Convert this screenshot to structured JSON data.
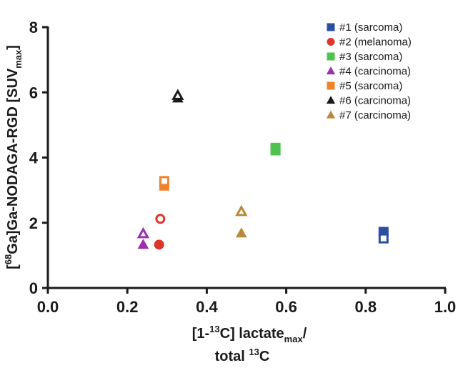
{
  "chart_data": {
    "type": "scatter",
    "ylabel": {
      "prefix": "[",
      "sup1": "68",
      "mid": "Ga]Ga-NODAGA-RGD [SUV",
      "sub": "max",
      "suffix": "]"
    },
    "xlabel": {
      "line1": {
        "prefix": "[1-",
        "sup": "13",
        "mid": "C] lactate",
        "sub": "max",
        "suffix": "/"
      },
      "line2": {
        "prefix": "total ",
        "sup": "13",
        "suffix": "C"
      }
    },
    "xlim": [
      0,
      1.0
    ],
    "ylim": [
      0,
      8
    ],
    "x_ticks": [
      "0.0",
      "0.2",
      "0.4",
      "0.6",
      "0.8",
      "1.0"
    ],
    "y_ticks": [
      "0",
      "2",
      "4",
      "6",
      "8"
    ],
    "legend_position": "top-right",
    "series": [
      {
        "name": "#1 (sarcoma)",
        "color": "#2b4ea2",
        "marker": "square",
        "points": [
          {
            "x": 0.845,
            "y": 1.72,
            "filled": true
          },
          {
            "x": 0.845,
            "y": 1.52,
            "filled": false
          }
        ]
      },
      {
        "name": "#2 (melanoma)",
        "color": "#e0352b",
        "marker": "circle",
        "points": [
          {
            "x": 0.28,
            "y": 1.33,
            "filled": true
          },
          {
            "x": 0.283,
            "y": 2.12,
            "filled": false
          }
        ]
      },
      {
        "name": "#3 (sarcoma)",
        "color": "#4dc34d",
        "marker": "square",
        "points": [
          {
            "x": 0.573,
            "y": 4.3,
            "filled": true
          },
          {
            "x": 0.573,
            "y": 4.22,
            "filled": true
          }
        ]
      },
      {
        "name": "#4 (carcinoma)",
        "color": "#9b2fae",
        "marker": "triangle",
        "points": [
          {
            "x": 0.24,
            "y": 1.33,
            "filled": true
          },
          {
            "x": 0.24,
            "y": 1.66,
            "filled": false
          }
        ]
      },
      {
        "name": "#5 (sarcoma)",
        "color": "#f0822b",
        "marker": "square",
        "points": [
          {
            "x": 0.293,
            "y": 3.14,
            "filled": true
          },
          {
            "x": 0.293,
            "y": 3.28,
            "filled": false
          }
        ]
      },
      {
        "name": "#6 (carcinoma)",
        "color": "#1a1a1a",
        "marker": "triangle",
        "points": [
          {
            "x": 0.327,
            "y": 5.82,
            "filled": true
          },
          {
            "x": 0.327,
            "y": 5.9,
            "filled": false
          }
        ]
      },
      {
        "name": "#7 (carcinoma)",
        "color": "#b8893a",
        "marker": "triangle",
        "points": [
          {
            "x": 0.487,
            "y": 1.68,
            "filled": true
          },
          {
            "x": 0.487,
            "y": 2.34,
            "filled": false
          }
        ]
      }
    ]
  }
}
